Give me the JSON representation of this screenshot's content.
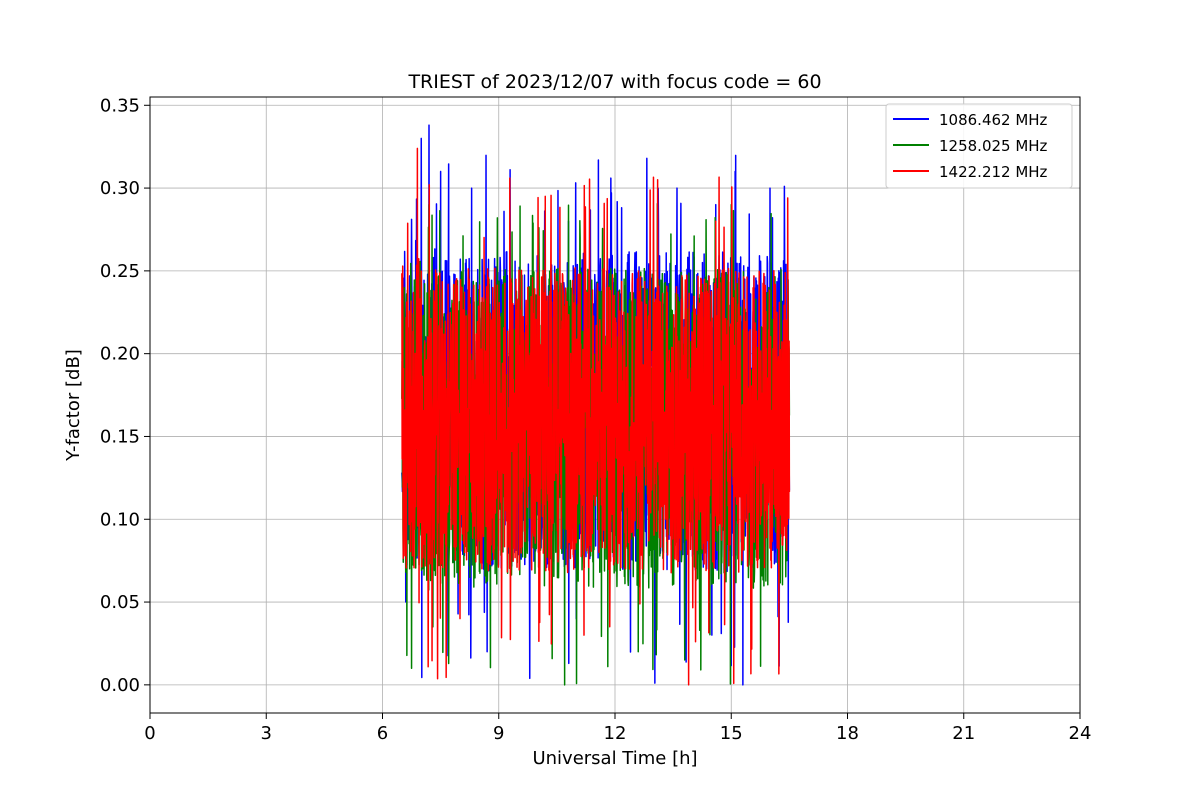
{
  "chart_data": {
    "type": "line",
    "title": "TRIEST of 2023/12/07 with focus code = 60",
    "xlabel": "Universal Time [h]",
    "ylabel": "Y-factor [dB]",
    "xlim": [
      0,
      24
    ],
    "ylim": [
      -0.017,
      0.355
    ],
    "xticks": [
      0,
      3,
      6,
      9,
      12,
      15,
      18,
      21,
      24
    ],
    "xtick_labels": [
      "0",
      "3",
      "6",
      "9",
      "12",
      "15",
      "18",
      "21",
      "24"
    ],
    "yticks": [
      0.0,
      0.05,
      0.1,
      0.15,
      0.2,
      0.25,
      0.3,
      0.35
    ],
    "ytick_labels": [
      "0.00",
      "0.05",
      "0.10",
      "0.15",
      "0.20",
      "0.25",
      "0.30",
      "0.35"
    ],
    "grid": true,
    "legend_position": "top-right",
    "x_range_of_data": [
      6.5,
      16.5
    ],
    "series": [
      {
        "name": "1086.462 MHz",
        "color": "#0000ff",
        "approx_min": 0.0,
        "approx_max": 0.338,
        "typical_low": 0.05,
        "typical_high": 0.28,
        "peaks": [
          [
            6.6,
            0.3
          ],
          [
            7.0,
            0.33
          ],
          [
            7.2,
            0.338
          ],
          [
            7.5,
            0.31
          ],
          [
            8.3,
            0.3
          ],
          [
            10.8,
            0.28
          ],
          [
            13.6,
            0.3
          ],
          [
            14.6,
            0.29
          ],
          [
            15.1,
            0.31
          ],
          [
            16.0,
            0.3
          ]
        ],
        "troughs": [
          [
            6.6,
            0.05
          ],
          [
            8.7,
            0.02
          ],
          [
            11.0,
            0.04
          ],
          [
            14.5,
            0.03
          ],
          [
            15.3,
            0.0
          ]
        ]
      },
      {
        "name": "1258.025 MHz",
        "color": "#008000",
        "approx_min": 0.0,
        "approx_max": 0.3,
        "typical_low": 0.04,
        "typical_high": 0.27,
        "peaks": [
          [
            7.2,
            0.29
          ],
          [
            10.2,
            0.28
          ],
          [
            15.0,
            0.29
          ]
        ],
        "troughs": [
          [
            6.75,
            0.01
          ],
          [
            7.3,
            0.035
          ],
          [
            10.7,
            0.0
          ],
          [
            12.6,
            0.02
          ],
          [
            13.8,
            0.015
          ]
        ]
      },
      {
        "name": "1422.212 MHz",
        "color": "#ff0000",
        "approx_min": 0.0,
        "approx_max": 0.324,
        "typical_low": 0.05,
        "typical_high": 0.27,
        "peaks": [
          [
            6.9,
            0.324
          ],
          [
            10.2,
            0.295
          ],
          [
            13.1,
            0.305
          ],
          [
            14.6,
            0.28
          ]
        ],
        "troughs": [
          [
            13.9,
            0.0
          ],
          [
            11.2,
            0.03
          ],
          [
            8.0,
            0.04
          ]
        ]
      }
    ]
  }
}
